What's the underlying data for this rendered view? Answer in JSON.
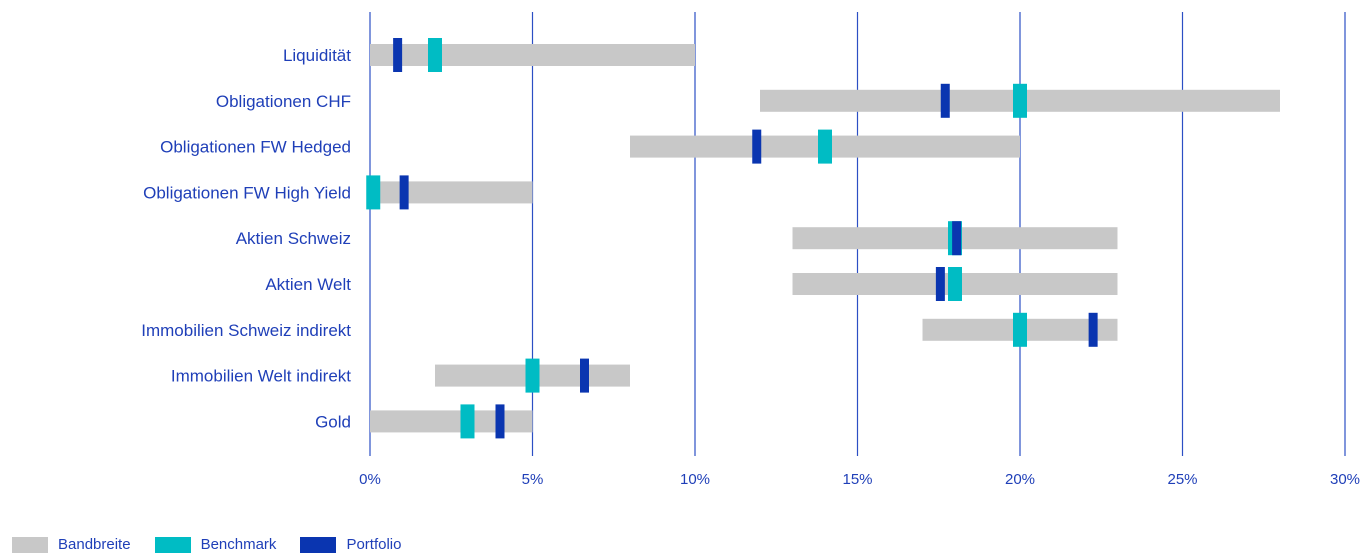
{
  "chart_data": {
    "type": "range-bar",
    "xlim": [
      0,
      30
    ],
    "ticks": [
      {
        "value": 0,
        "label": "0%"
      },
      {
        "value": 5,
        "label": "5%"
      },
      {
        "value": 10,
        "label": "10%"
      },
      {
        "value": 15,
        "label": "15%"
      },
      {
        "value": 20,
        "label": "20%"
      },
      {
        "value": 25,
        "label": "25%"
      },
      {
        "value": 30,
        "label": "30%"
      }
    ],
    "grid": true,
    "legend_placement": "bottom-left",
    "legend": {
      "band": "Bandbreite",
      "benchmark": "Benchmark",
      "portfolio": "Portfolio"
    },
    "colors": {
      "band": "#c8c8c8",
      "benchmark": "#00bcc4",
      "portfolio": "#0a35b0",
      "grid": "#2c4fc4",
      "text": "#1f3fb8"
    },
    "categories": [
      {
        "name": "Liquidität",
        "band": [
          0,
          10
        ],
        "benchmark": 2,
        "portfolio": 0.85
      },
      {
        "name": "Obligationen CHF",
        "band": [
          12,
          28
        ],
        "benchmark": 20,
        "portfolio": 17.7
      },
      {
        "name": "Obligationen FW Hedged",
        "band": [
          8,
          20
        ],
        "benchmark": 14,
        "portfolio": 11.9
      },
      {
        "name": "Obligationen FW High Yield",
        "band": [
          0,
          5
        ],
        "benchmark": 0.1,
        "portfolio": 1.05
      },
      {
        "name": "Aktien Schweiz",
        "band": [
          13,
          23
        ],
        "benchmark": 18,
        "portfolio": 18.05
      },
      {
        "name": "Aktien Welt",
        "band": [
          13,
          23
        ],
        "benchmark": 18,
        "portfolio": 17.55
      },
      {
        "name": "Immobilien Schweiz indirekt",
        "band": [
          17,
          23
        ],
        "benchmark": 20,
        "portfolio": 22.25
      },
      {
        "name": "Immobilien Welt indirekt",
        "band": [
          2,
          8
        ],
        "benchmark": 5,
        "portfolio": 6.6
      },
      {
        "name": "Gold",
        "band": [
          0,
          5
        ],
        "benchmark": 3,
        "portfolio": 4
      }
    ]
  }
}
